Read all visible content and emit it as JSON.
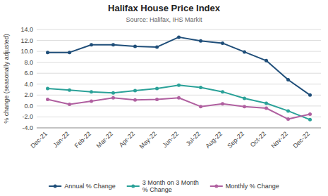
{
  "chart_data": {
    "type": "line",
    "title": "Halifax House Price Index",
    "subtitle": "Source: Halifax, IHS Markit",
    "ylabel": "% change (seasonally adjusted)",
    "categories": [
      "Dec-21",
      "Jan-22",
      "Feb-22",
      "Mar-22",
      "Apr-22",
      "May-22",
      "Jun-22",
      "Jul-22",
      "Aug-22",
      "Sep-22",
      "Oct-22",
      "Nov-22",
      "Dec-22"
    ],
    "series": [
      {
        "name": "Annual % Change",
        "color": "#1f4e79",
        "values": [
          9.8,
          9.8,
          11.2,
          11.2,
          10.9,
          10.8,
          12.6,
          11.9,
          11.5,
          9.9,
          8.3,
          4.8,
          2.0
        ]
      },
      {
        "name": "3 Month on 3 Month\n% Change",
        "color": "#2aa198",
        "values": [
          3.2,
          2.9,
          2.6,
          2.4,
          2.8,
          3.2,
          3.8,
          3.4,
          2.6,
          1.4,
          0.5,
          -0.9,
          -2.5
        ]
      },
      {
        "name": "Monthly % Change",
        "color": "#b060a0",
        "values": [
          1.2,
          0.3,
          0.9,
          1.5,
          1.1,
          1.2,
          1.5,
          -0.1,
          0.4,
          -0.1,
          -0.4,
          -2.4,
          -1.5
        ]
      }
    ],
    "marker": "circle",
    "ylim": [
      -4.0,
      14.0
    ],
    "yticks": [
      {
        "value": -4.0,
        "label": "-4.0"
      },
      {
        "value": -2.0,
        "label": "-2.0"
      },
      {
        "value": 0.0,
        "label": "0.0"
      },
      {
        "value": 2.0,
        "label": "2.0"
      },
      {
        "value": 4.0,
        "label": "4.0"
      },
      {
        "value": 6.0,
        "label": "6.0"
      },
      {
        "value": 8.0,
        "label": "8.0"
      },
      {
        "value": 10.0,
        "label": "10.0"
      },
      {
        "value": 12.0,
        "label": "12.0"
      },
      {
        "value": 14.0,
        "label": "14.0"
      }
    ],
    "grid": true,
    "legend": "bottom"
  }
}
